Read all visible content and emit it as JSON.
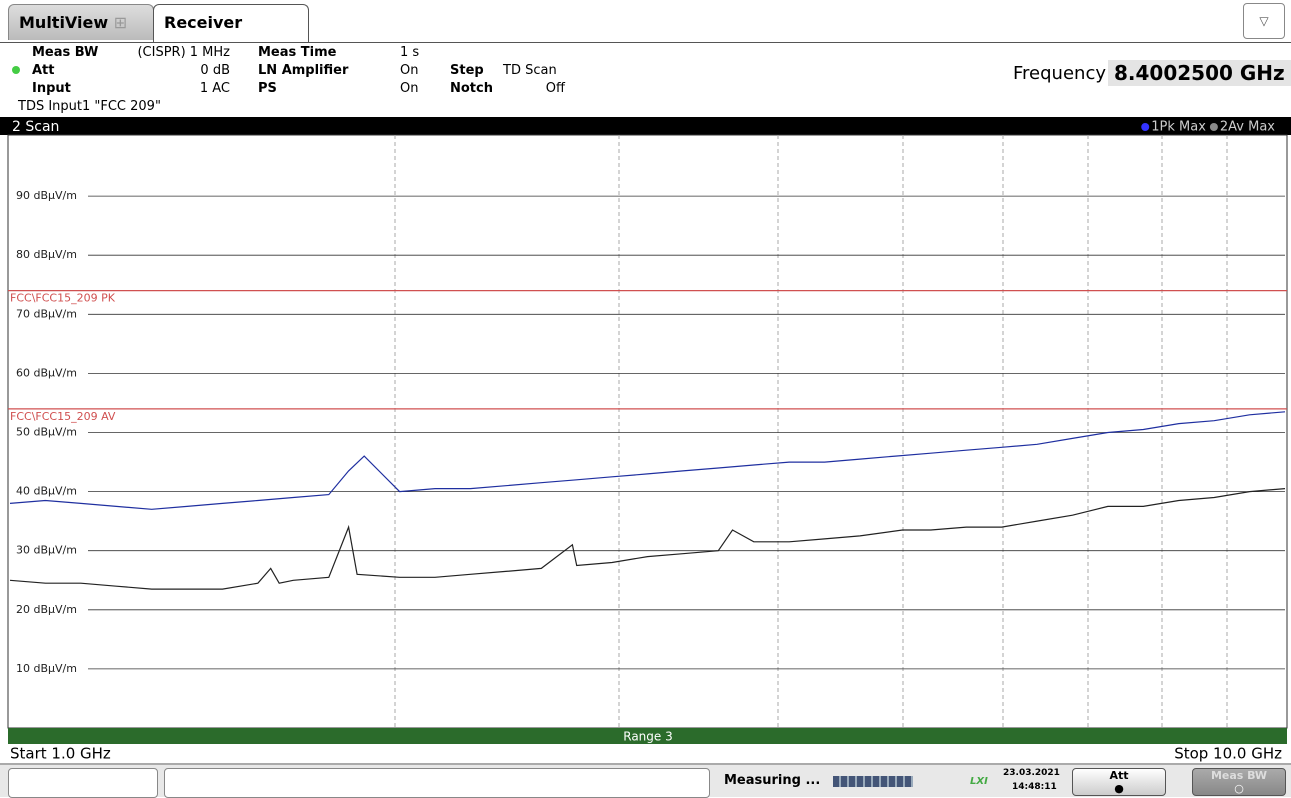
{
  "tabs": [
    "MultiView",
    "Receiver"
  ],
  "settings": [
    {
      "label": "Meas BW",
      "value": "(CISPR) 1 MHz"
    },
    {
      "label": "Meas Time",
      "value": "1 s"
    },
    {
      "label": "Att",
      "value": "0 dB"
    },
    {
      "label": "LN Amplifier",
      "value": "On"
    },
    {
      "label": "Step",
      "value": "TD Scan"
    },
    {
      "label": "Input",
      "value": "1 AC"
    },
    {
      "label": "PS",
      "value": "On"
    },
    {
      "label": "Notch",
      "value": "Off"
    }
  ],
  "transducer": "TDS Input1 \"FCC 209\"",
  "frequency": {
    "label": "Frequency",
    "value": "8.4002500 GHz"
  },
  "window_title": "2 Scan",
  "range_label": "Range 3",
  "start_label": "Start 1.0 GHz",
  "stop_label": "Stop 10.0 GHz",
  "status": {
    "text": "Measuring ...",
    "date": "23.03.2021",
    "time": "14:48:11",
    "buttons": [
      "Att",
      "Meas BW"
    ]
  },
  "chart_data": {
    "type": "line",
    "xlim": [
      1.0,
      10.0
    ],
    "ylim": [
      0,
      100
    ],
    "yticks": [
      {
        "value": 10,
        "label": "10 dBµV/m"
      },
      {
        "value": 20,
        "label": "20 dBµV/m"
      },
      {
        "value": 30,
        "label": "30 dBµV/m"
      },
      {
        "value": 40,
        "label": "40 dBµV/m"
      },
      {
        "value": 50,
        "label": "50 dBµV/m"
      },
      {
        "value": 60,
        "label": "60 dBµV/m"
      },
      {
        "value": 70,
        "label": "70 dBµV/m"
      },
      {
        "value": 80,
        "label": "80 dBµV/m"
      },
      {
        "value": 90,
        "label": "90 dBµV/m"
      }
    ],
    "grid": true,
    "limit_lines": [
      {
        "name": "FCC\\FCC15_209 PK",
        "value": 74,
        "color": "#d05050"
      },
      {
        "name": "FCC\\FCC15_209 AV",
        "value": 54,
        "color": "#d05050"
      }
    ],
    "series": [
      {
        "name": "1Pk Max",
        "color": "#1f2fa0",
        "x": [
          1.0,
          1.25,
          1.5,
          1.75,
          2.0,
          2.25,
          2.5,
          2.75,
          3.0,
          3.25,
          3.39,
          3.5,
          3.75,
          4.0,
          4.25,
          4.5,
          4.75,
          5.0,
          5.25,
          5.5,
          5.75,
          6.0,
          6.25,
          6.5,
          6.75,
          7.0,
          7.25,
          7.5,
          7.75,
          8.0,
          8.25,
          8.5,
          8.75,
          9.0,
          9.25,
          9.5,
          9.75,
          10.0
        ],
        "values": [
          38.0,
          38.5,
          38.0,
          37.5,
          37.0,
          37.5,
          38.0,
          38.5,
          39.0,
          39.5,
          43.5,
          46.0,
          40.0,
          40.5,
          40.5,
          41.0,
          41.5,
          42.0,
          42.5,
          43.0,
          43.5,
          44.0,
          44.5,
          45.0,
          45.0,
          45.5,
          46.0,
          46.5,
          47.0,
          47.5,
          48.0,
          49.0,
          50.0,
          50.5,
          51.5,
          52.0,
          53.0,
          53.5
        ]
      },
      {
        "name": "2Av Max",
        "color": "#222222",
        "x": [
          1.0,
          1.25,
          1.5,
          1.75,
          2.0,
          2.25,
          2.5,
          2.75,
          2.84,
          2.9,
          3.0,
          3.25,
          3.39,
          3.45,
          3.75,
          4.0,
          4.25,
          4.5,
          4.75,
          4.97,
          5.0,
          5.25,
          5.5,
          5.75,
          6.0,
          6.1,
          6.25,
          6.5,
          6.75,
          7.0,
          7.3,
          7.5,
          7.75,
          8.0,
          8.25,
          8.5,
          8.75,
          9.0,
          9.25,
          9.5,
          9.75,
          10.0
        ],
        "values": [
          25.0,
          24.5,
          24.5,
          24.0,
          23.5,
          23.5,
          23.5,
          24.5,
          27.0,
          24.5,
          25.0,
          25.5,
          34.0,
          26.0,
          25.5,
          25.5,
          26.0,
          26.5,
          27.0,
          31.0,
          27.5,
          28.0,
          29.0,
          29.5,
          30.0,
          33.5,
          31.5,
          31.5,
          32.0,
          32.5,
          33.5,
          33.5,
          34.0,
          34.0,
          35.0,
          36.0,
          37.5,
          37.5,
          38.5,
          39.0,
          40.0,
          40.5
        ]
      }
    ]
  }
}
